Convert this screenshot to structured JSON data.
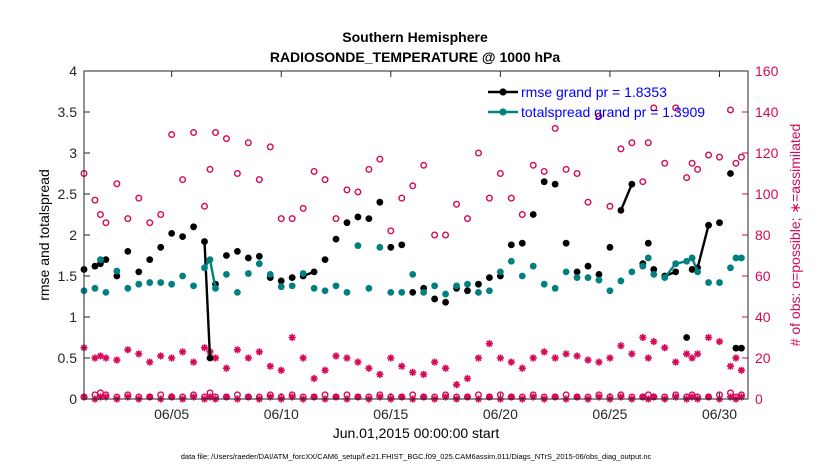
{
  "colors": {
    "rmse": "#000000",
    "spread": "#008080",
    "obs": "#d6085a",
    "legend_text": "#0000ff",
    "axis": "#262626"
  },
  "chart_data": {
    "type": "line",
    "title": "Southern Hemisphere",
    "subtitle": "RADIOSONDE_TEMPERATURE @ 1000 hPa",
    "xlabel": "Jun.01,2015 00:00:00 start",
    "ylabel_left": "rmse and totalspread",
    "ylabel_right": "# of obs: o=possible; ∗=assimilated",
    "footnote": "data file: /Users/raeder/DAI/ATM_forcXX/CAM6_setup/f.e21.FHIST_BGC.f09_025.CAM6assim.011/Diags_NTrS_2015-06/obs_diag_output.nc",
    "xlim": [
      1,
      31.3
    ],
    "ylim_left": [
      0,
      4
    ],
    "ylim_right": [
      0,
      160
    ],
    "xticks": [
      5,
      10,
      15,
      20,
      25,
      30
    ],
    "xtick_labels": [
      "06/05",
      "06/10",
      "06/15",
      "06/20",
      "06/25",
      "06/30"
    ],
    "yticks_left": [
      0,
      0.5,
      1,
      1.5,
      2,
      2.5,
      3,
      3.5,
      4
    ],
    "ytick_labels_left": [
      "0",
      "0.5",
      "1",
      "1.5",
      "2",
      "2.5",
      "3",
      "3.5",
      "4"
    ],
    "yticks_right": [
      0,
      20,
      40,
      60,
      80,
      100,
      120,
      140,
      160
    ],
    "ytick_labels_right": [
      "0",
      "20",
      "40",
      "60",
      "80",
      "100",
      "120",
      "140",
      "160"
    ],
    "x": [
      1.0,
      1.5,
      1.75,
      2.0,
      2.5,
      3.0,
      3.5,
      4.0,
      4.5,
      5.0,
      5.5,
      6.0,
      6.5,
      6.75,
      7.0,
      7.5,
      8.0,
      8.5,
      9.0,
      9.5,
      10.0,
      10.5,
      11.0,
      11.5,
      12.0,
      12.5,
      13.0,
      13.5,
      14.0,
      14.5,
      15.0,
      15.5,
      16.0,
      16.5,
      17.0,
      17.5,
      18.0,
      18.5,
      19.0,
      19.5,
      20.0,
      20.5,
      21.0,
      21.5,
      22.0,
      22.5,
      23.0,
      23.5,
      24.0,
      24.5,
      25.0,
      25.5,
      26.0,
      26.5,
      26.75,
      27.0,
      27.5,
      28.0,
      28.5,
      28.75,
      29.0,
      29.5,
      30.0,
      30.5,
      30.75,
      31.0
    ],
    "series": [
      {
        "name": "rmse grand pr = 1.8353",
        "values": [
          1.58,
          1.62,
          1.65,
          1.7,
          1.5,
          1.8,
          1.55,
          1.7,
          1.85,
          2.02,
          1.98,
          2.1,
          1.92,
          0.5,
          1.4,
          1.75,
          1.8,
          1.72,
          1.74,
          1.48,
          1.44,
          1.48,
          1.5,
          1.55,
          1.7,
          1.95,
          2.15,
          2.22,
          2.2,
          2.4,
          1.85,
          1.88,
          1.3,
          1.35,
          1.22,
          1.18,
          1.35,
          1.32,
          1.4,
          1.48,
          1.5,
          1.88,
          1.9,
          2.25,
          2.65,
          2.62,
          1.9,
          1.55,
          1.62,
          1.52,
          1.85,
          2.3,
          2.62,
          1.65,
          1.9,
          1.58,
          1.5,
          1.55,
          0.75,
          1.58,
          1.6,
          2.12,
          2.15,
          2.75,
          0.62,
          0.62
        ]
      },
      {
        "name": "totalspread grand pr = 1.3909",
        "values": [
          1.32,
          1.35,
          1.7,
          1.3,
          1.56,
          1.35,
          1.4,
          1.42,
          1.42,
          1.4,
          1.5,
          1.38,
          1.6,
          1.7,
          1.35,
          1.52,
          1.3,
          1.53,
          1.65,
          1.52,
          1.37,
          1.38,
          1.53,
          1.35,
          1.32,
          1.38,
          1.3,
          1.87,
          1.35,
          1.85,
          1.3,
          1.3,
          1.52,
          1.3,
          1.38,
          1.28,
          1.38,
          1.4,
          1.3,
          1.32,
          1.55,
          1.68,
          1.5,
          1.62,
          1.4,
          1.35,
          1.55,
          1.48,
          1.48,
          1.45,
          1.32,
          1.44,
          1.55,
          1.62,
          1.72,
          1.52,
          1.48,
          1.65,
          1.68,
          1.72,
          1.55,
          1.42,
          1.42,
          1.6,
          1.72,
          1.72
        ]
      }
    ],
    "obs_possible": [
      110,
      97,
      90,
      86,
      105,
      88,
      98,
      86,
      90,
      129,
      107,
      130,
      94,
      112,
      130,
      127,
      110,
      125,
      107,
      123,
      88,
      88,
      93,
      111,
      107,
      88,
      102,
      101,
      112,
      117,
      82,
      98,
      104,
      114,
      80,
      80,
      95,
      88,
      120,
      98,
      110,
      98,
      90,
      114,
      111,
      132,
      112,
      110,
      96,
      138,
      94,
      122,
      125,
      106,
      125,
      142,
      115,
      142,
      108,
      115,
      112,
      119,
      118,
      141,
      115,
      118
    ],
    "obs_possible_low": [
      1,
      2,
      3,
      2,
      1,
      2,
      1,
      1,
      2,
      1,
      1,
      2,
      1,
      3,
      1,
      1,
      2,
      1,
      1,
      2,
      1,
      2,
      1,
      1,
      2,
      1,
      2,
      1,
      1,
      2,
      1,
      1,
      2,
      1,
      1,
      2,
      1,
      1,
      2,
      1,
      2,
      1,
      1,
      2,
      1,
      1,
      2,
      1,
      1,
      2,
      1,
      2,
      1,
      1,
      2,
      1,
      1,
      2,
      1,
      2,
      1,
      1,
      2,
      3,
      1,
      2
    ],
    "obs_assimilated": [
      25,
      20,
      21,
      20,
      19,
      24,
      22,
      18,
      21,
      20,
      23,
      18,
      25,
      23,
      20,
      15,
      24,
      20,
      23,
      16,
      14,
      30,
      20,
      10,
      14,
      21,
      20,
      18,
      15,
      12,
      20,
      16,
      13,
      12,
      18,
      15,
      7,
      10,
      20,
      27,
      20,
      18,
      15,
      20,
      23,
      20,
      22,
      21,
      19,
      18,
      20,
      26,
      22,
      30,
      20,
      28,
      25,
      18,
      22,
      20,
      22,
      30,
      28,
      16,
      20,
      14
    ],
    "obs_assimilated_low": [
      1,
      0,
      1,
      1,
      0,
      1,
      0,
      1,
      0,
      1,
      0,
      1,
      0,
      1,
      0,
      1,
      0,
      1,
      0,
      1,
      0,
      1,
      0,
      1,
      0,
      1,
      0,
      1,
      0,
      1,
      0,
      1,
      0,
      1,
      0,
      1,
      0,
      1,
      0,
      1,
      0,
      1,
      0,
      1,
      0,
      1,
      0,
      1,
      0,
      1,
      0,
      1,
      0,
      1,
      0,
      1,
      0,
      1,
      0,
      1,
      0,
      1,
      0,
      1,
      0,
      1
    ],
    "legend": [
      "rmse grand pr = 1.8353",
      "totalspread grand pr = 1.3909"
    ],
    "legend_location": "top-right"
  }
}
